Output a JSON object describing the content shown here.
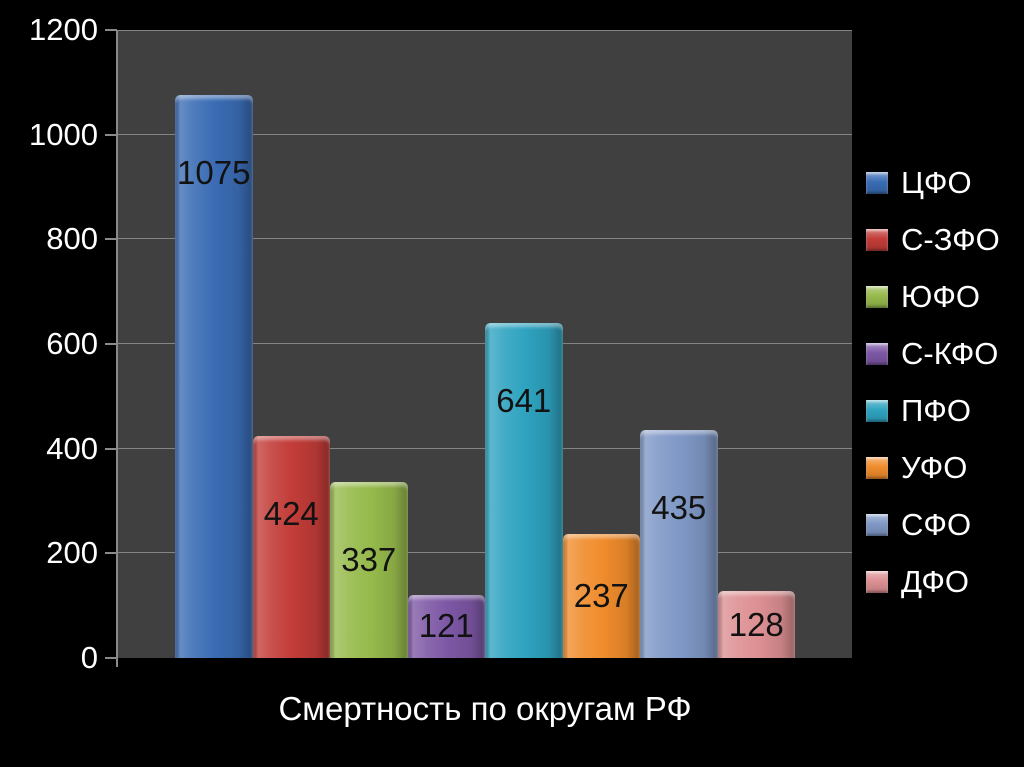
{
  "chart_data": {
    "type": "bar",
    "title": "Смертность по округам РФ",
    "categories": [
      "РФ"
    ],
    "series": [
      {
        "name": "ЦФО",
        "value": 1075,
        "color": "#3a6cb4"
      },
      {
        "name": "С-ЗФО",
        "value": 424,
        "color": "#c23c38"
      },
      {
        "name": "ЮФО",
        "value": 337,
        "color": "#96ba4b"
      },
      {
        "name": "С-КФО",
        "value": 121,
        "color": "#7d57a5"
      },
      {
        "name": "ПФО",
        "value": 641,
        "color": "#2ea3c0"
      },
      {
        "name": "УФО",
        "value": 237,
        "color": "#f08c2c"
      },
      {
        "name": "СФО",
        "value": 435,
        "color": "#7f98c6"
      },
      {
        "name": "ДФО",
        "value": 128,
        "color": "#dd9093"
      }
    ],
    "yticks": [
      0,
      200,
      400,
      600,
      800,
      1000,
      1200
    ],
    "ylim": [
      0,
      1200
    ],
    "grid": true,
    "legend_position": "right",
    "value_labels": true
  },
  "colors": {
    "background": "#000000",
    "plot_background": "#404040",
    "gridline": "#848484",
    "axis": "#8a8a8a",
    "tick_label_text": "#ffffff",
    "value_label_text": "#121212",
    "legend_text": "#ffffff",
    "title_text": "#ffffff"
  }
}
